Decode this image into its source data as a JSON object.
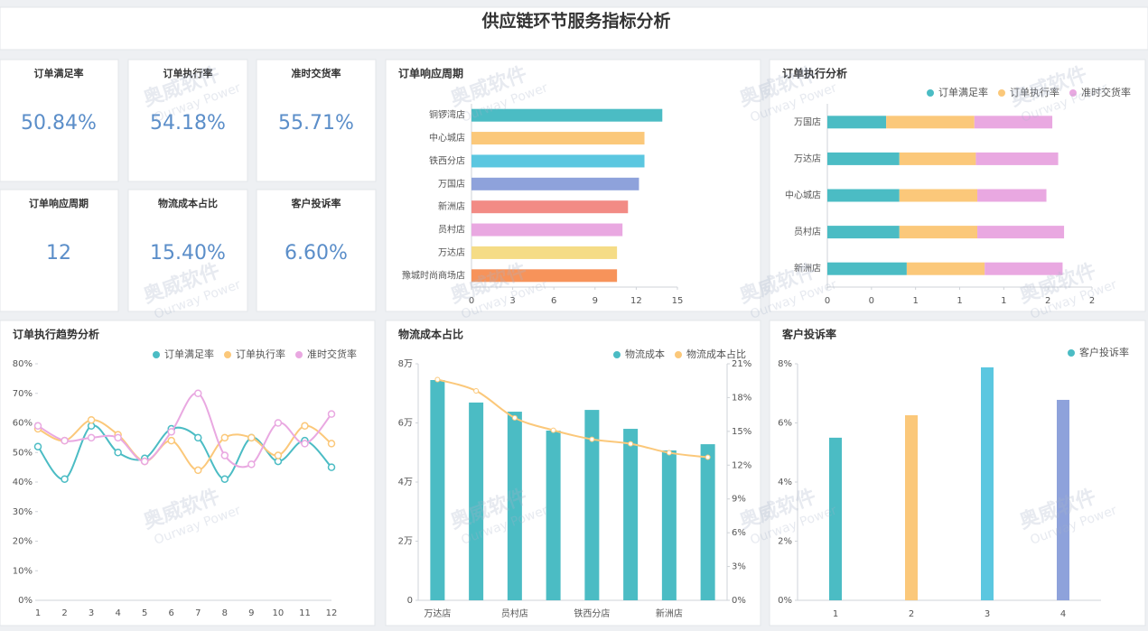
{
  "header": {
    "title": "供应链环节服务指标分析"
  },
  "watermark": {
    "cn": "奥威软件",
    "en": "Ourway Power"
  },
  "kpis": [
    {
      "label": "订单满足率",
      "value": "50.84%"
    },
    {
      "label": "订单执行率",
      "value": "54.18%"
    },
    {
      "label": "准时交货率",
      "value": "55.71%"
    },
    {
      "label": "订单响应周期",
      "value": "12"
    },
    {
      "label": "物流成本占比",
      "value": "15.40%"
    },
    {
      "label": "客户投诉率",
      "value": "6.60%"
    }
  ],
  "chart_data": [
    {
      "type": "bar",
      "orientation": "horizontal",
      "title": "订单响应周期",
      "categories": [
        "铜锣湾店",
        "中心城店",
        "铁西分店",
        "万国店",
        "新洲店",
        "员村店",
        "万达店",
        "豫城时尚商场店"
      ],
      "values": [
        13.9,
        12.6,
        12.6,
        12.2,
        11.4,
        11.0,
        10.6,
        10.6
      ],
      "colors": [
        "#4bbcc4",
        "#fbc87a",
        "#5bc7e0",
        "#8ea2db",
        "#f28b85",
        "#e9a8e1",
        "#f5dc86",
        "#f7935a"
      ],
      "xlim": [
        0,
        15
      ],
      "xticks": [
        0,
        3,
        6,
        9,
        12,
        15
      ],
      "grid": false
    },
    {
      "type": "bar",
      "orientation": "horizontal",
      "stacked": true,
      "title": "订单执行分析",
      "categories": [
        "万国店",
        "万达店",
        "中心城店",
        "员村店",
        "新洲店"
      ],
      "series": [
        {
          "name": "订单满足率",
          "color": "#4bbcc4",
          "values": [
            0.4,
            0.49,
            0.49,
            0.49,
            0.54
          ]
        },
        {
          "name": "订单执行率",
          "color": "#fbc87a",
          "values": [
            0.6,
            0.52,
            0.53,
            0.53,
            0.53
          ]
        },
        {
          "name": "准时交货率",
          "color": "#e9a8e1",
          "values": [
            0.53,
            0.56,
            0.47,
            0.59,
            0.53
          ]
        }
      ],
      "xlim": [
        0,
        1.8
      ],
      "xticks": [
        0,
        {
          "value": 0.3,
          "label": "0"
        },
        {
          "value": 0.6,
          "label": "1"
        },
        {
          "value": 0.9,
          "label": "1"
        },
        {
          "value": 1.2,
          "label": "1"
        },
        {
          "value": 1.5,
          "label": "2"
        },
        {
          "value": 1.8,
          "label": "2"
        }
      ],
      "grid": false,
      "legend": "top-right"
    },
    {
      "type": "line",
      "title": "订单执行趋势分析",
      "x": [
        1,
        2,
        3,
        4,
        5,
        6,
        7,
        8,
        9,
        10,
        11,
        12
      ],
      "xlim": [
        1,
        12
      ],
      "series": [
        {
          "name": "订单满足率",
          "color": "#4bbcc4",
          "values": [
            52,
            41,
            59,
            50,
            48,
            58,
            55,
            41,
            55,
            47,
            54,
            45
          ]
        },
        {
          "name": "订单执行率",
          "color": "#fbc87a",
          "values": [
            58,
            54,
            61,
            56,
            47,
            54,
            44,
            55,
            55,
            49,
            59,
            53
          ]
        },
        {
          "name": "准时交货率",
          "color": "#e9a8e1",
          "values": [
            59,
            54,
            55,
            55,
            47,
            57,
            70,
            49,
            46,
            60,
            53,
            63
          ]
        }
      ],
      "ylim": [
        0,
        80
      ],
      "yticks": [
        {
          "value": 0,
          "label": "0%"
        },
        {
          "value": 10,
          "label": "10%"
        },
        {
          "value": 20,
          "label": "20%"
        },
        {
          "value": 30,
          "label": "30%"
        },
        {
          "value": 40,
          "label": "40%"
        },
        {
          "value": 50,
          "label": "50%"
        },
        {
          "value": 60,
          "label": "60%"
        },
        {
          "value": 70,
          "label": "70%"
        },
        {
          "value": 80,
          "label": "80%"
        }
      ],
      "grid": false,
      "legend": "top-right"
    },
    {
      "type": "bar",
      "title": "物流成本占比",
      "categories": [
        "万达店",
        null,
        "员村店",
        null,
        "铁西分店",
        null,
        "新洲店",
        null
      ],
      "series": [
        {
          "name": "物流成本",
          "color": "#4bbcc4",
          "values": [
            74500,
            66900,
            63800,
            57400,
            64400,
            58000,
            50700,
            52800
          ]
        },
        {
          "name": "物流成本占比",
          "color": "#fbc87a",
          "type": "line",
          "axis": "y2",
          "values": [
            19.6,
            18.6,
            16.2,
            15.1,
            14.3,
            13.9,
            13.1,
            12.7
          ]
        }
      ],
      "ylim": [
        0,
        80000
      ],
      "yticks": [
        0,
        {
          "value": 20000,
          "label": "2万"
        },
        {
          "value": 40000,
          "label": "4万"
        },
        {
          "value": 60000,
          "label": "6万"
        },
        {
          "value": 80000,
          "label": "8万"
        }
      ],
      "y2lim": [
        0,
        21
      ],
      "y2ticks": [
        {
          "value": 0,
          "label": "0%"
        },
        {
          "value": 3,
          "label": "3%"
        },
        {
          "value": 6,
          "label": "6%"
        },
        {
          "value": 9,
          "label": "9%"
        },
        {
          "value": 12,
          "label": "12%"
        },
        {
          "value": 15,
          "label": "15%"
        },
        {
          "value": 18,
          "label": "18%"
        },
        {
          "value": 21,
          "label": "21%"
        }
      ],
      "grid": false,
      "legend": "top-right"
    },
    {
      "type": "bar",
      "title": "客户投诉率",
      "categories": [
        "1",
        "2",
        "3",
        "4"
      ],
      "series": [
        {
          "name": "客户投诉率",
          "color": "#4bbcc4",
          "values": [
            5.5,
            6.26,
            7.88,
            6.78
          ]
        }
      ],
      "colors": [
        "#4bbcc4",
        "#fbc87a",
        "#5bc7e0",
        "#8ea2db"
      ],
      "ylim": [
        0,
        8
      ],
      "yticks": [
        {
          "value": 0,
          "label": "0%"
        },
        {
          "value": 2,
          "label": "2%"
        },
        {
          "value": 4,
          "label": "4%"
        },
        {
          "value": 6,
          "label": "6%"
        },
        {
          "value": 8,
          "label": "8%"
        }
      ],
      "grid": false,
      "legend": "top-right"
    }
  ]
}
